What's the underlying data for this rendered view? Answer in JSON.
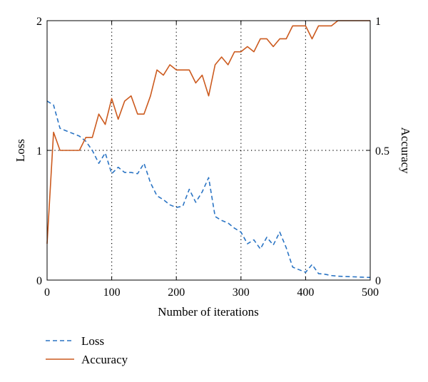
{
  "chart_data": {
    "type": "line",
    "xlabel": "Number of iterations",
    "ylabel_left": "Loss",
    "ylabel_right": "Accuracy",
    "xlim": [
      0,
      500
    ],
    "ylim_left": [
      0,
      2
    ],
    "ylim_right": [
      0,
      1
    ],
    "xticks": [
      0,
      100,
      200,
      300,
      400,
      500
    ],
    "yticks_left": [
      0,
      1,
      2
    ],
    "yticks_right": [
      0,
      0.5,
      1
    ],
    "xtick_labels": [
      "0",
      "100",
      "200",
      "300",
      "400",
      "500"
    ],
    "ytick_labels_left": [
      "0",
      "1",
      "2"
    ],
    "ytick_labels_right": [
      "0",
      "0.5",
      "1"
    ],
    "grid": "dotted at x = 100, 200, 300, 400 and y = 1",
    "legend_position": "bottom-left, below the plot",
    "series": [
      {
        "name": "Loss",
        "axis": "left",
        "color": "#2a74c4",
        "style": "dashed",
        "x": [
          0,
          10,
          20,
          30,
          40,
          50,
          60,
          70,
          80,
          90,
          100,
          110,
          120,
          130,
          140,
          150,
          160,
          170,
          180,
          190,
          200,
          210,
          220,
          230,
          240,
          250,
          260,
          270,
          280,
          290,
          300,
          310,
          320,
          330,
          340,
          350,
          360,
          370,
          380,
          390,
          400,
          410,
          420,
          430,
          440,
          450,
          460,
          470,
          480,
          490,
          500
        ],
        "values": [
          1.38,
          1.35,
          1.17,
          1.15,
          1.13,
          1.11,
          1.07,
          1.0,
          0.9,
          0.98,
          0.82,
          0.87,
          0.83,
          0.83,
          0.82,
          0.9,
          0.75,
          0.65,
          0.62,
          0.58,
          0.56,
          0.57,
          0.7,
          0.6,
          0.68,
          0.79,
          0.49,
          0.46,
          0.44,
          0.4,
          0.37,
          0.28,
          0.31,
          0.24,
          0.33,
          0.27,
          0.37,
          0.25,
          0.1,
          0.08,
          0.06,
          0.12,
          0.05,
          0.045,
          0.035,
          0.03,
          0.028,
          0.026,
          0.024,
          0.022,
          0.02
        ]
      },
      {
        "name": "Accuracy",
        "axis": "right",
        "color": "#cc5a1e",
        "style": "solid",
        "x": [
          0,
          10,
          20,
          30,
          40,
          50,
          60,
          70,
          80,
          90,
          100,
          110,
          120,
          130,
          140,
          150,
          160,
          170,
          180,
          190,
          200,
          210,
          220,
          230,
          240,
          250,
          260,
          270,
          280,
          290,
          300,
          310,
          320,
          330,
          340,
          350,
          360,
          370,
          380,
          390,
          400,
          410,
          420,
          430,
          440,
          450,
          460,
          470,
          480,
          490,
          500
        ],
        "values": [
          0.14,
          0.57,
          0.5,
          0.5,
          0.5,
          0.5,
          0.55,
          0.55,
          0.64,
          0.6,
          0.7,
          0.62,
          0.69,
          0.71,
          0.64,
          0.64,
          0.71,
          0.81,
          0.79,
          0.83,
          0.81,
          0.81,
          0.81,
          0.76,
          0.79,
          0.71,
          0.83,
          0.86,
          0.83,
          0.88,
          0.88,
          0.9,
          0.88,
          0.93,
          0.93,
          0.9,
          0.93,
          0.93,
          0.98,
          0.98,
          0.98,
          0.93,
          0.98,
          0.98,
          0.98,
          1.0,
          1.0,
          1.0,
          1.0,
          1.0,
          1.0
        ]
      }
    ]
  }
}
